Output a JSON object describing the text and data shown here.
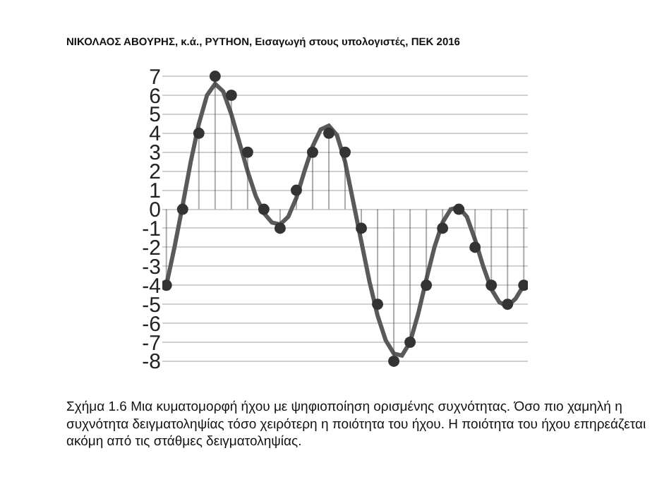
{
  "chart_data": {
    "type": "line",
    "annotations": [
      "ΝΙΚΟΛΑΟΣ ΑΒΟΥΡΗΣ, κ.ά., PYTHON, Εισαγωγή στους υπολογιστές, ΠΕΚ 2016",
      "Σχήμα 1.6 Μια κυματομορφή ήχου με ψηφιοποίηση ορισμένης συχνότητας. Όσο πιο χαμηλή η συχνότητα δειγματοληψίας τόσο χειρότερη η ποιότητα του ήχου. Η ποιότητα του ήχου επηρεάζεται ακόμη από τις στάθμες δειγματοληψίας."
    ],
    "categories": [
      null,
      null,
      null,
      null,
      null,
      null,
      null,
      null,
      null,
      null,
      null,
      null,
      null,
      null,
      null,
      null,
      null,
      null,
      null,
      null,
      null,
      null,
      null,
      null,
      null,
      null,
      null,
      null,
      null,
      null,
      null,
      null,
      null,
      null,
      null,
      null,
      null,
      null,
      null,
      null,
      null,
      null,
      null,
      null,
      null
    ],
    "series": [
      {
        "color": "#5a5a5a",
        "marker": "none",
        "values": [
          -4,
          -2,
          0.2,
          2.5,
          4.5,
          6,
          6.6,
          6.2,
          5,
          3.5,
          2,
          0.7,
          -0.2,
          -0.7,
          -0.8,
          -0.4,
          0.6,
          2,
          3.3,
          4.2,
          4.4,
          3.9,
          2.5,
          0.4,
          -1.7,
          -3.8,
          -5.6,
          -6.9,
          -7.6,
          -7.7,
          -7,
          -5.5,
          -3.7,
          -2,
          -0.7,
          0,
          0.1,
          -0.4,
          -1.6,
          -3,
          -4.2,
          -4.9,
          -5.1,
          -4.7,
          -4
        ]
      },
      {
        "type": "lollipop",
        "color": "#333333",
        "marker": "circle",
        "values": [
          -4,
          null,
          0,
          null,
          4,
          null,
          7,
          null,
          6,
          null,
          3,
          null,
          0,
          null,
          -1,
          null,
          1,
          null,
          3,
          null,
          4,
          null,
          3,
          null,
          -1,
          null,
          -5,
          null,
          -8,
          null,
          -7,
          null,
          -4,
          null,
          -1,
          null,
          0,
          null,
          -2,
          null,
          -4,
          null,
          -5,
          null,
          -4
        ]
      }
    ],
    "ylim": [
      -8,
      7
    ],
    "yticks": [
      -8,
      -7,
      -6,
      -5,
      -4,
      -3,
      -2,
      -1,
      0,
      1,
      2,
      3,
      4,
      5,
      6,
      7
    ],
    "grid": "y",
    "tick_labels": "y"
  }
}
